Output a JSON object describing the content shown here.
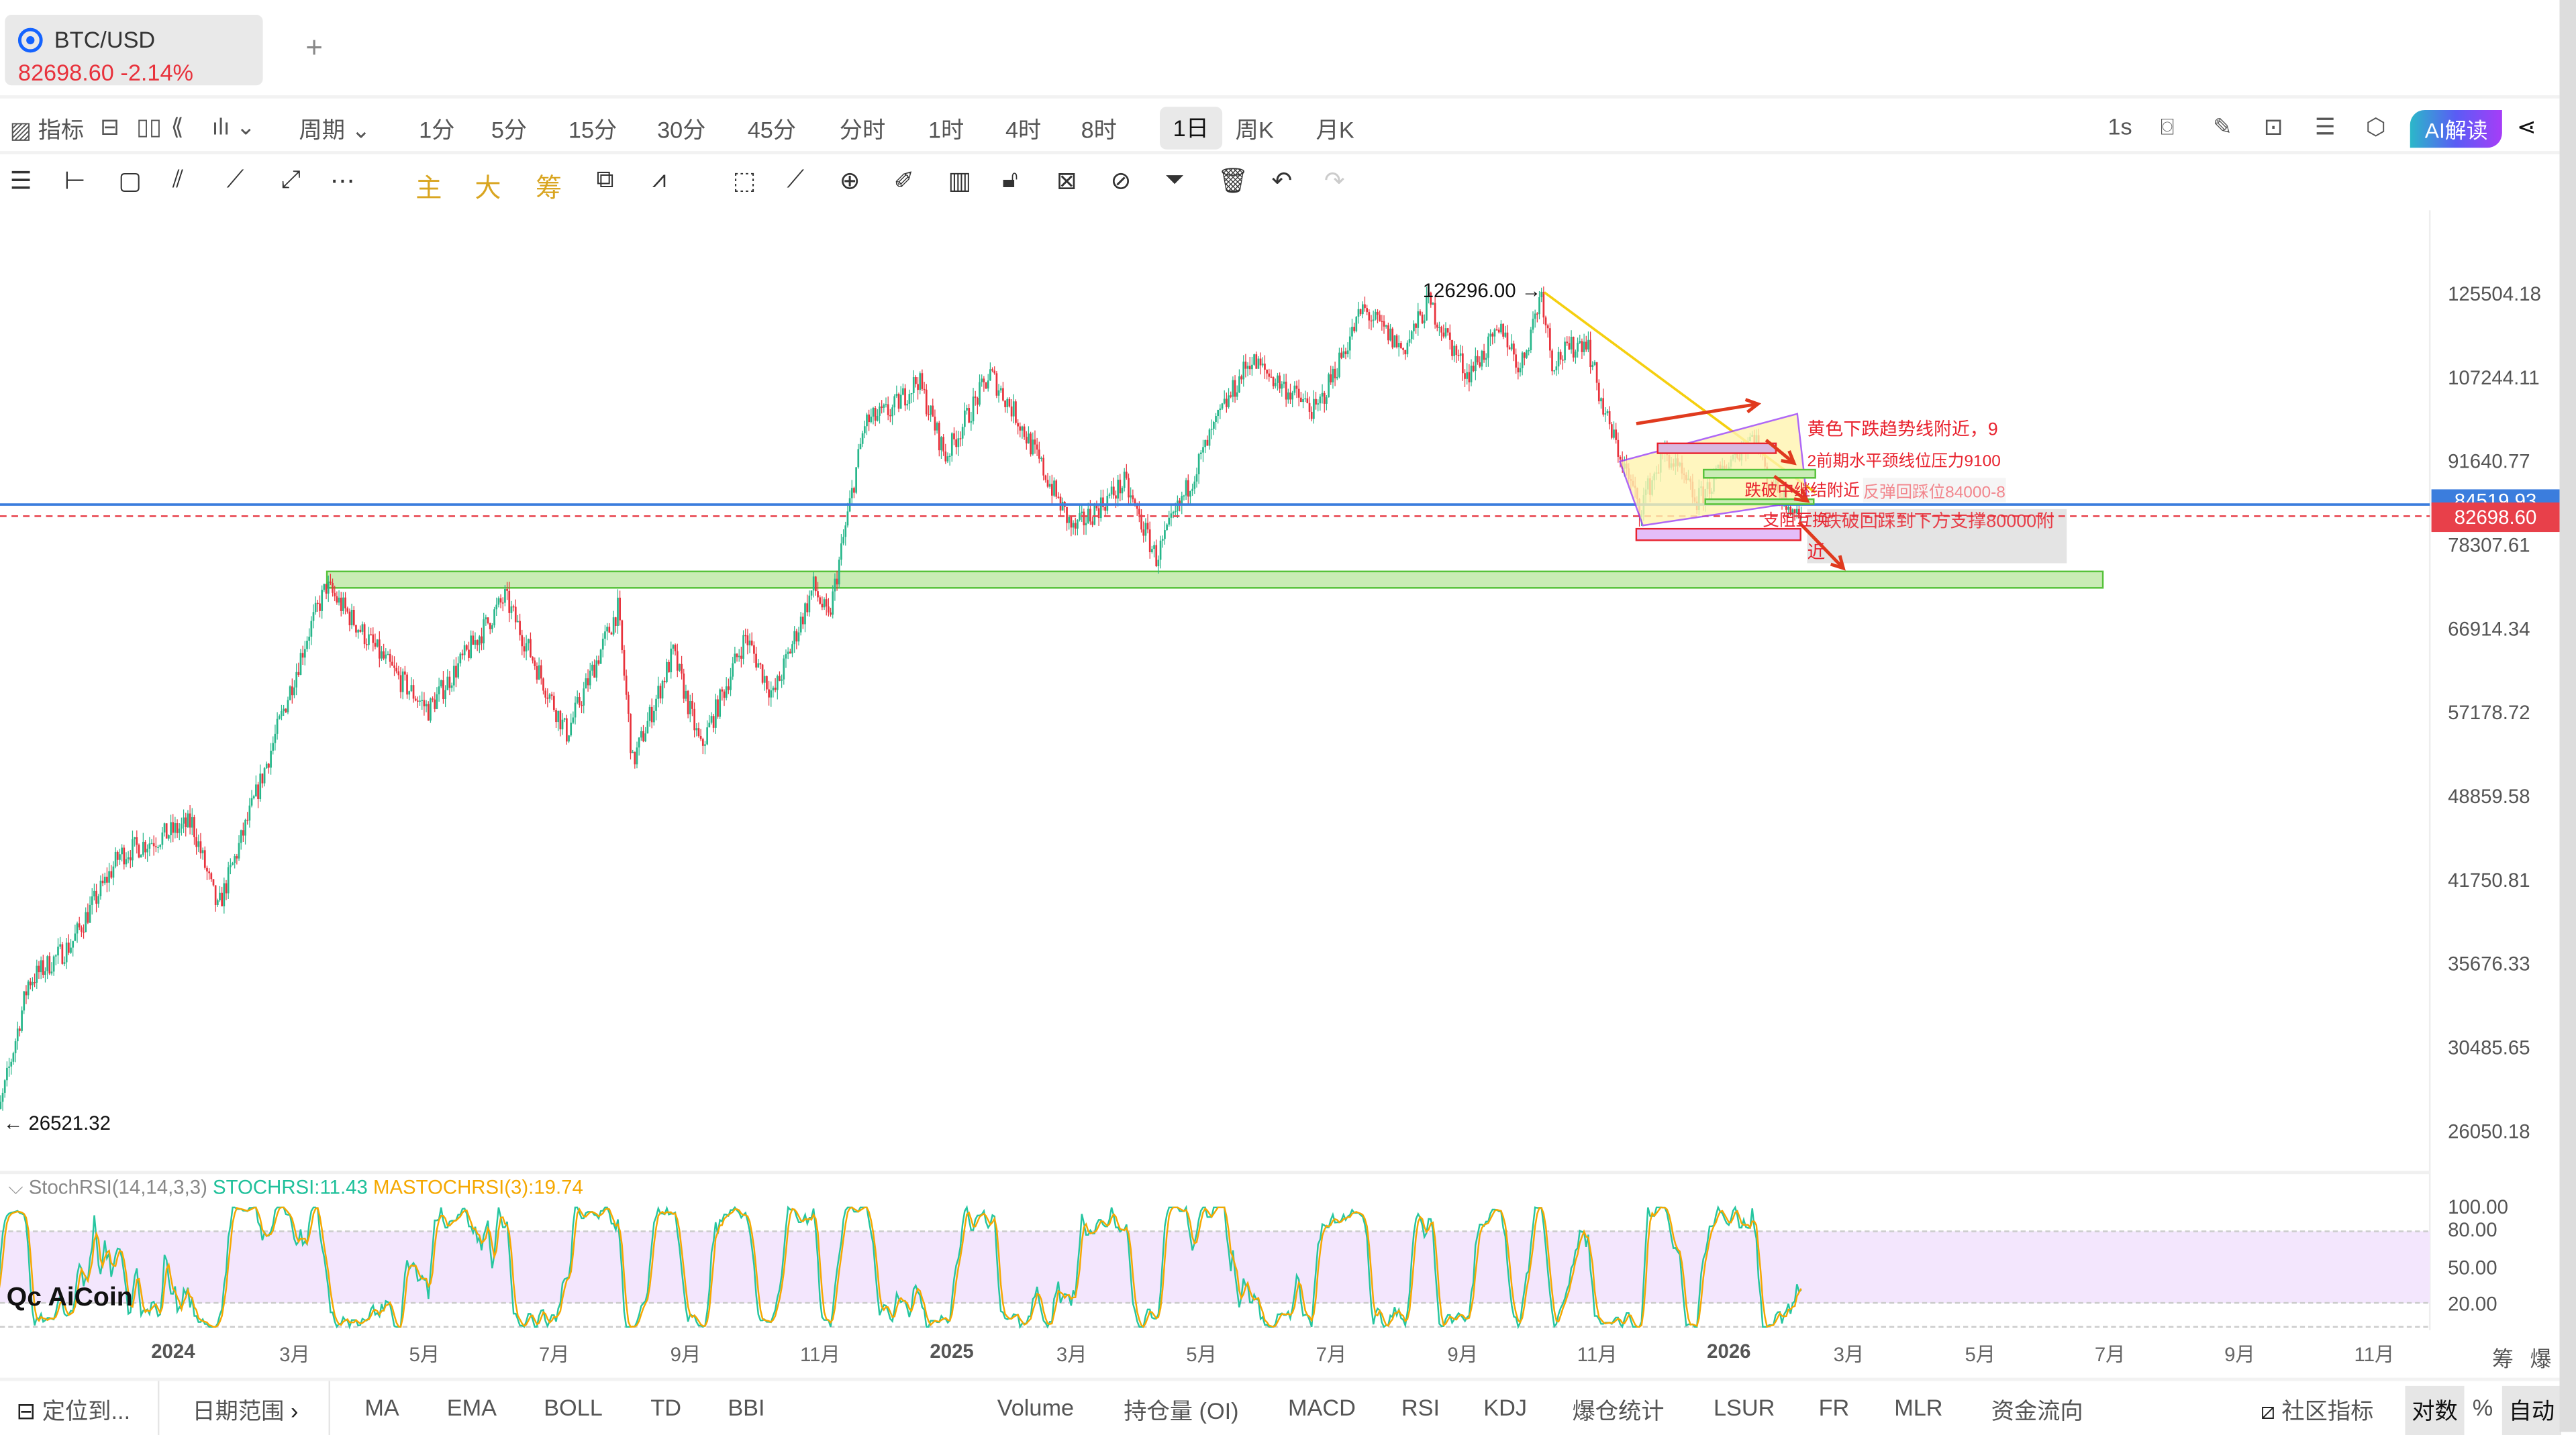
{
  "tab": {
    "symbol": "BTC/USD",
    "price": "82698.60",
    "change": "-2.14%",
    "add": "+"
  },
  "toolbar": {
    "indicator": "指标",
    "period": "周期",
    "periods": [
      "1分",
      "5分",
      "15分",
      "30分",
      "45分",
      "分时",
      "1时",
      "4时",
      "8时",
      "1日",
      "周K",
      "月K"
    ],
    "active_period": "1日",
    "right": {
      "interval": "1s",
      "ai": "AI解读"
    },
    "draw": {
      "main": "主",
      "big": "大",
      "chip": "筹"
    }
  },
  "chart": {
    "scale": "log",
    "y_ticks": [
      "125504.18",
      "107244.11",
      "91640.77",
      "78307.61",
      "66914.34",
      "57178.72",
      "48859.58",
      "41750.81",
      "35676.33",
      "30485.65",
      "26050.18"
    ],
    "x_ticks": [
      "2024",
      "3月",
      "5月",
      "7月",
      "9月",
      "11月",
      "2025",
      "3月",
      "5月",
      "7月",
      "9月",
      "11月",
      "2026",
      "3月",
      "5月",
      "7月",
      "9月",
      "11月"
    ],
    "high_label": "126296.00",
    "low_label": "26521.32",
    "current_price": "82698.60",
    "blue_line_price": "84519.93",
    "colors": {
      "up": "#26b68a",
      "down": "#e8323c",
      "current": "#e8404a",
      "blue": "#3b7ddd"
    },
    "path": [
      [
        "2023-10-08",
        27600
      ],
      [
        "2023-10-12",
        26800
      ],
      [
        "2023-10-26",
        34500
      ],
      [
        "2023-11-15",
        37000
      ],
      [
        "2023-12-08",
        43800
      ],
      [
        "2024-01-11",
        46500
      ],
      [
        "2024-01-23",
        39500
      ],
      [
        "2024-02-15",
        52000
      ],
      [
        "2024-03-05",
        66000
      ],
      [
        "2024-03-14",
        72500
      ],
      [
        "2024-04-17",
        61000
      ],
      [
        "2024-05-01",
        57500
      ],
      [
        "2024-06-06",
        71000
      ],
      [
        "2024-07-05",
        55000
      ],
      [
        "2024-07-29",
        69500
      ],
      [
        "2024-08-05",
        52000
      ],
      [
        "2024-08-24",
        64000
      ],
      [
        "2024-09-06",
        53500
      ],
      [
        "2024-09-27",
        66000
      ],
      [
        "2024-10-10",
        59000
      ],
      [
        "2024-10-29",
        72500
      ],
      [
        "2024-11-05",
        68000
      ],
      [
        "2024-11-22",
        98500
      ],
      [
        "2024-12-05",
        101000
      ],
      [
        "2024-12-17",
        107000
      ],
      [
        "2024-12-30",
        92500
      ],
      [
        "2025-01-20",
        108000
      ],
      [
        "2025-02-01",
        100000
      ],
      [
        "2025-02-28",
        80500
      ],
      [
        "2025-03-24",
        88000
      ],
      [
        "2025-04-08",
        76500
      ],
      [
        "2025-05-08",
        100000
      ],
      [
        "2025-05-22",
        111000
      ],
      [
        "2025-06-22",
        100500
      ],
      [
        "2025-07-14",
        122000
      ],
      [
        "2025-08-02",
        113000
      ],
      [
        "2025-08-14",
        123500
      ],
      [
        "2025-09-01",
        108000
      ],
      [
        "2025-09-18",
        117500
      ],
      [
        "2025-09-26",
        109000
      ],
      [
        "2025-10-06",
        126000
      ],
      [
        "2025-10-11",
        110500
      ],
      [
        "2025-10-27",
        115500
      ],
      [
        "2025-11-04",
        101000
      ],
      [
        "2025-11-21",
        84000
      ],
      [
        "2025-12-03",
        93500
      ],
      [
        "2025-12-18",
        85000
      ],
      [
        "2026-01-05",
        93000
      ],
      [
        "2026-01-14",
        96500
      ],
      [
        "2026-01-20",
        89000
      ],
      [
        "2026-02-05",
        82698.6
      ]
    ]
  },
  "annotations": {
    "a1": "黄色下跌趋势线附近，9",
    "a2": "2前期水平颈线位压力9100",
    "a3": "跌破中继结附近",
    "a4": "反弹回踩位84000-8",
    "a5": "支阻互换",
    "a6": "跌破回踩到下方支撑80000附",
    "a7": "近"
  },
  "indicator": {
    "name": "StochRSI(14,14,3,3)",
    "k_label": "STOCHRSI:11.43",
    "d_label": "MASTOCHRSI(3):19.74",
    "ticks": [
      "100.00",
      "80.00",
      "50.00",
      "20.00"
    ],
    "colors": {
      "k": "#26c6a0",
      "d": "#f5a800",
      "band": "#f3e6fd"
    }
  },
  "watermark": "AiCoin",
  "axis_right": {
    "chip": "筹",
    "liq": "爆"
  },
  "bottom": {
    "locate": "定位到...",
    "range": "日期范围",
    "main_indicators": [
      "MA",
      "EMA",
      "BOLL",
      "TD",
      "BBI"
    ],
    "sub_indicators": [
      "Volume",
      "持仓量 (OI)",
      "MACD",
      "RSI",
      "KDJ",
      "爆仓统计",
      "LSUR",
      "FR",
      "MLR",
      "资金流向"
    ],
    "community": "社区指标",
    "log": "对数",
    "pct": "%",
    "auto": "自动"
  }
}
